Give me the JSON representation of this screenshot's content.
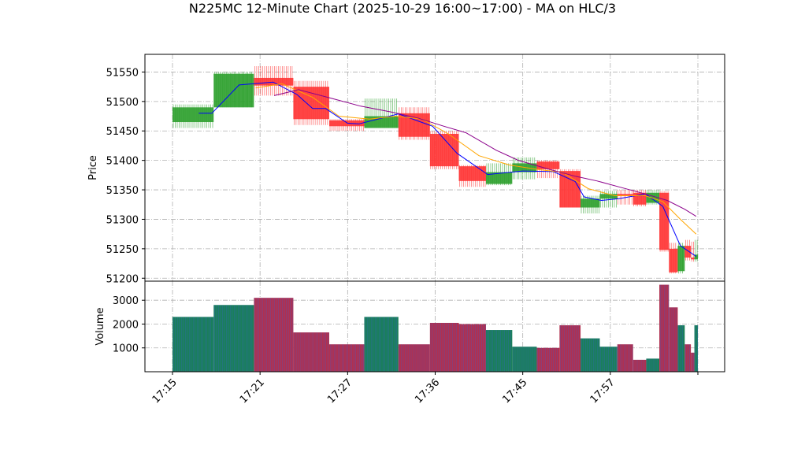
{
  "chart_data": {
    "type": "candlestick",
    "title": "N225MC 12-Minute Chart (2025-10-29 16:00~17:00) - MA on HLC/3",
    "price_panel": {
      "ylabel": "Price",
      "ylim": [
        51195,
        51580
      ],
      "yticks": [
        51200,
        51250,
        51300,
        51350,
        51400,
        51450,
        51500,
        51550
      ],
      "grid": true
    },
    "volume_panel": {
      "ylabel": "Volume",
      "ylim": [
        0,
        3800
      ],
      "yticks": [
        1000,
        2000,
        3000
      ],
      "grid": true
    },
    "x_range": [
      0,
      60
    ],
    "xticks": [
      {
        "x": 0,
        "label": "17:15"
      },
      {
        "x": 10,
        "label": "17:21"
      },
      {
        "x": 20,
        "label": "17:27"
      },
      {
        "x": 30,
        "label": "17:36"
      },
      {
        "x": 40,
        "label": "17:45"
      },
      {
        "x": 50,
        "label": "17:57"
      },
      {
        "x": 60,
        "label": ""
      }
    ],
    "colors": {
      "up": "#2ca02c",
      "down": "#ff3333",
      "volume_up": "#1a7f5a",
      "volume_down": "#b03050",
      "ma_fast": "#0000ff",
      "ma_mid": "#ffa500",
      "ma_slow": "#8b008b"
    },
    "bars": [
      {
        "x0": 0,
        "x1": 4.7,
        "open": 51465,
        "close": 51490,
        "high": 51495,
        "low": 51455,
        "volume": 2300
      },
      {
        "x0": 4.7,
        "x1": 9.3,
        "open": 51490,
        "close": 51547,
        "high": 51550,
        "low": 51490,
        "volume": 2800
      },
      {
        "x0": 9.3,
        "x1": 13.8,
        "open": 51540,
        "close": 51527,
        "high": 51560,
        "low": 51510,
        "volume": 3100
      },
      {
        "x0": 13.8,
        "x1": 17.9,
        "open": 51525,
        "close": 51470,
        "high": 51535,
        "low": 51460,
        "volume": 1650
      },
      {
        "x0": 17.9,
        "x1": 21.9,
        "open": 51468,
        "close": 51458,
        "high": 51470,
        "low": 51450,
        "volume": 1150
      },
      {
        "x0": 21.9,
        "x1": 25.8,
        "open": 51455,
        "close": 51475,
        "high": 51505,
        "low": 51455,
        "volume": 2300
      },
      {
        "x0": 25.8,
        "x1": 29.4,
        "open": 51480,
        "close": 51440,
        "high": 51490,
        "low": 51435,
        "volume": 1150
      },
      {
        "x0": 29.4,
        "x1": 32.7,
        "open": 51445,
        "close": 51390,
        "high": 51450,
        "low": 51385,
        "volume": 2050
      },
      {
        "x0": 32.7,
        "x1": 35.8,
        "open": 51390,
        "close": 51365,
        "high": 51392,
        "low": 51355,
        "volume": 2000
      },
      {
        "x0": 35.8,
        "x1": 38.8,
        "open": 51360,
        "close": 51380,
        "high": 51395,
        "low": 51358,
        "volume": 1750
      },
      {
        "x0": 38.8,
        "x1": 41.6,
        "open": 51380,
        "close": 51395,
        "high": 51405,
        "low": 51368,
        "volume": 1050
      },
      {
        "x0": 41.6,
        "x1": 44.2,
        "open": 51398,
        "close": 51385,
        "high": 51400,
        "low": 51370,
        "volume": 1000
      },
      {
        "x0": 44.2,
        "x1": 46.6,
        "open": 51382,
        "close": 51320,
        "high": 51385,
        "low": 51320,
        "volume": 1950
      },
      {
        "x0": 46.6,
        "x1": 48.8,
        "open": 51320,
        "close": 51335,
        "high": 51340,
        "low": 51310,
        "volume": 1400
      },
      {
        "x0": 48.8,
        "x1": 50.8,
        "open": 51335,
        "close": 51343,
        "high": 51348,
        "low": 51320,
        "volume": 1050
      },
      {
        "x0": 50.8,
        "x1": 52.6,
        "open": 51343,
        "close": 51340,
        "high": 51350,
        "low": 51325,
        "volume": 1150
      },
      {
        "x0": 52.6,
        "x1": 54.1,
        "open": 51345,
        "close": 51325,
        "high": 51350,
        "low": 51322,
        "volume": 500
      },
      {
        "x0": 54.1,
        "x1": 55.6,
        "open": 51328,
        "close": 51345,
        "high": 51350,
        "low": 51325,
        "volume": 550
      },
      {
        "x0": 55.6,
        "x1": 56.7,
        "open": 51345,
        "close": 51248,
        "high": 51348,
        "low": 51245,
        "volume": 3650
      },
      {
        "x0": 56.7,
        "x1": 57.7,
        "open": 51250,
        "close": 51210,
        "high": 51260,
        "low": 51208,
        "volume": 2700
      },
      {
        "x0": 57.7,
        "x1": 58.5,
        "open": 51212,
        "close": 51255,
        "high": 51260,
        "low": 51208,
        "volume": 1950
      },
      {
        "x0": 58.5,
        "x1": 59.2,
        "open": 51255,
        "close": 51235,
        "high": 51265,
        "low": 51230,
        "volume": 1150
      },
      {
        "x0": 59.2,
        "x1": 59.6,
        "open": 51235,
        "close": 51232,
        "high": 51262,
        "low": 51228,
        "volume": 800
      },
      {
        "x0": 59.6,
        "x1": 60.0,
        "open": 51232,
        "close": 51240,
        "high": 51265,
        "low": 51228,
        "volume": 1950
      }
    ],
    "ma_series": [
      {
        "color_key": "ma_fast",
        "points": [
          [
            3,
            51480
          ],
          [
            4.5,
            51480
          ],
          [
            7.6,
            51528
          ],
          [
            11.5,
            51533
          ],
          [
            14.2,
            51512
          ],
          [
            16,
            51488
          ],
          [
            17.5,
            51488
          ],
          [
            20,
            51463
          ],
          [
            21.3,
            51462
          ],
          [
            25.8,
            51479
          ],
          [
            28,
            51467
          ],
          [
            29.7,
            51458
          ],
          [
            32.5,
            51412
          ],
          [
            36,
            51376
          ],
          [
            40,
            51382
          ],
          [
            43.5,
            51381
          ],
          [
            46,
            51364
          ],
          [
            47,
            51338
          ],
          [
            49,
            51332
          ],
          [
            51,
            51335
          ],
          [
            54,
            51343
          ],
          [
            56,
            51322
          ],
          [
            58,
            51255
          ],
          [
            59.8,
            51237
          ]
        ]
      },
      {
        "color_key": "ma_mid",
        "points": [
          [
            9.5,
            51523
          ],
          [
            12.5,
            51530
          ],
          [
            16,
            51507
          ],
          [
            19,
            51475
          ],
          [
            22.5,
            51470
          ],
          [
            25.5,
            51475
          ],
          [
            28.5,
            51470
          ],
          [
            31.5,
            51445
          ],
          [
            35,
            51408
          ],
          [
            38.5,
            51392
          ],
          [
            42,
            51384
          ],
          [
            44.5,
            51380
          ],
          [
            47.5,
            51352
          ],
          [
            50.5,
            51340
          ],
          [
            54,
            51340
          ],
          [
            56,
            51330
          ],
          [
            58,
            51300
          ],
          [
            59.8,
            51275
          ]
        ]
      },
      {
        "color_key": "ma_slow",
        "points": [
          [
            11.6,
            51510
          ],
          [
            14.4,
            51520
          ],
          [
            18,
            51506
          ],
          [
            21.5,
            51492
          ],
          [
            25,
            51482
          ],
          [
            28,
            51472
          ],
          [
            31,
            51458
          ],
          [
            33.5,
            51447
          ],
          [
            37,
            51417
          ],
          [
            39.5,
            51400
          ],
          [
            43,
            51385
          ],
          [
            46,
            51373
          ],
          [
            48.5,
            51365
          ],
          [
            51,
            51355
          ],
          [
            54,
            51343
          ],
          [
            56.5,
            51332
          ],
          [
            58.5,
            51317
          ],
          [
            59.8,
            51305
          ]
        ]
      }
    ]
  }
}
